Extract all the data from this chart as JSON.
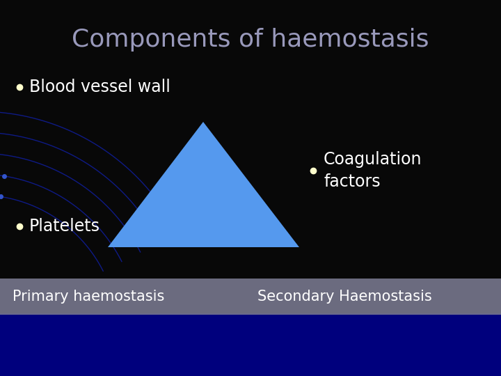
{
  "title": "Components of haemostasis",
  "title_color": "#9999bb",
  "title_fontsize": 26,
  "background_color": "#080808",
  "bullet_color": "#ffffcc",
  "text_color": "#ffffff",
  "bullet1": "Blood vessel wall",
  "bullet2": "Coagulation\nfactors",
  "bullet3": "Platelets",
  "footer_left": "Primary haemostasis",
  "footer_right": "Secondary Haemostasis",
  "footer_bg": "#7a7a90",
  "triangle_color": "#5599ee",
  "blue_arc_color": "#1122bb",
  "blue_bg_color": "#00008b"
}
